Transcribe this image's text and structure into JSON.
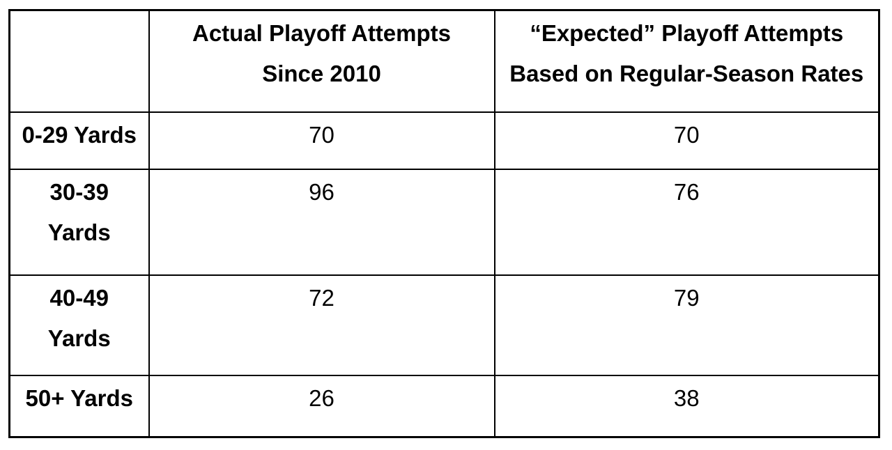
{
  "table": {
    "corner_label": "",
    "columns": [
      {
        "key": "label",
        "header": ""
      },
      {
        "key": "actual",
        "header": "Actual Playoff Attempts\nSince 2010"
      },
      {
        "key": "expected",
        "header": "“Expected” Playoff Attempts\nBased on Regular-Season Rates"
      }
    ],
    "rows": [
      {
        "label": "0-29 Yards",
        "actual": "70",
        "expected": "70"
      },
      {
        "label": "30-39\nYards",
        "actual": "96",
        "expected": "76"
      },
      {
        "label": "40-49\nYards",
        "actual": "72",
        "expected": "79"
      },
      {
        "label": "50+ Yards",
        "actual": "26",
        "expected": "38"
      }
    ]
  },
  "chart_data": {
    "type": "table",
    "title": "",
    "categories": [
      "0-29 Yards",
      "30-39 Yards",
      "40-49 Yards",
      "50+ Yards"
    ],
    "series": [
      {
        "name": "Actual Playoff Attempts Since 2010",
        "values": [
          70,
          96,
          72,
          26
        ]
      },
      {
        "name": "\"Expected\" Playoff Attempts Based on Regular-Season Rates",
        "values": [
          70,
          76,
          79,
          38
        ]
      }
    ],
    "layout_hints": {
      "row_label_column": "Field-goal distance bucket",
      "grid": "full black borders",
      "header_rows": 1
    }
  },
  "colors": {
    "background": "#ffffff",
    "border": "#000000",
    "text": "#000000"
  }
}
